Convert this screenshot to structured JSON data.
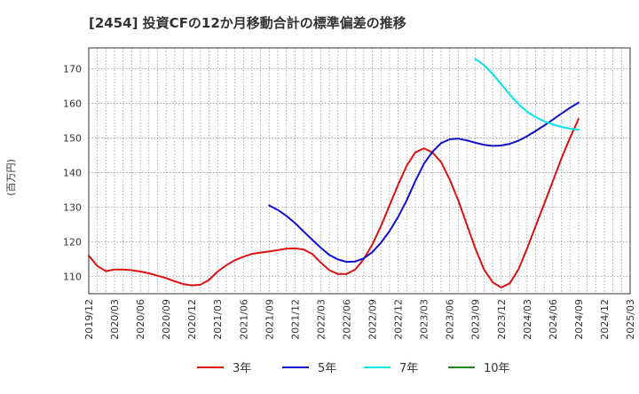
{
  "chart_data": {
    "type": "line",
    "title": "[2454]  投資CFの12か月移動合計の標準偏差の推移",
    "ylabel": "(百万円)",
    "xlabel": "",
    "ylim": [
      105,
      176
    ],
    "yticks": [
      110,
      120,
      130,
      140,
      150,
      160,
      170
    ],
    "x_tick_labels": [
      "2019/12",
      "2020/03",
      "2020/06",
      "2020/09",
      "2020/12",
      "2021/03",
      "2021/06",
      "2021/09",
      "2021/12",
      "2022/03",
      "2022/06",
      "2022/09",
      "2022/12",
      "2023/03",
      "2023/06",
      "2023/09",
      "2023/12",
      "2024/03",
      "2024/06",
      "2024/09",
      "2024/12",
      "2025/03"
    ],
    "grid": true,
    "legend_position": "bottom",
    "series": [
      {
        "name": "3年",
        "color": "#dd1111",
        "x": [
          "2019/12",
          "2020/01",
          "2020/02",
          "2020/03",
          "2020/04",
          "2020/05",
          "2020/06",
          "2020/07",
          "2020/08",
          "2020/09",
          "2020/10",
          "2020/11",
          "2020/12",
          "2021/01",
          "2021/02",
          "2021/03",
          "2021/04",
          "2021/05",
          "2021/06",
          "2021/07",
          "2021/08",
          "2021/09",
          "2021/10",
          "2021/11",
          "2021/12",
          "2022/01",
          "2022/02",
          "2022/03",
          "2022/04",
          "2022/05",
          "2022/06",
          "2022/07",
          "2022/08",
          "2022/09",
          "2022/10",
          "2022/11",
          "2022/12",
          "2023/01",
          "2023/02",
          "2023/03",
          "2023/04",
          "2023/05",
          "2023/06",
          "2023/07",
          "2023/08",
          "2023/09",
          "2023/10",
          "2023/11",
          "2023/12",
          "2024/01",
          "2024/02",
          "2024/03",
          "2024/04",
          "2024/05",
          "2024/06",
          "2024/07",
          "2024/08",
          "2024/09"
        ],
        "values": [
          116,
          113,
          111.5,
          112,
          112,
          111.8,
          111.4,
          110.9,
          110.2,
          109.5,
          108.6,
          107.8,
          107.4,
          107.6,
          109,
          111.4,
          113.2,
          114.7,
          115.7,
          116.5,
          116.9,
          117.2,
          117.6,
          118,
          118.1,
          117.8,
          116.5,
          114,
          111.8,
          110.7,
          110.7,
          112,
          115,
          119.2,
          124.5,
          130.5,
          136.5,
          142,
          145.8,
          147,
          145.8,
          143,
          138,
          132,
          125,
          118,
          112,
          108.3,
          106.8,
          108,
          112,
          118,
          124.5,
          131,
          137.5,
          144,
          150,
          155.5
        ]
      },
      {
        "name": "5年",
        "color": "#1111cc",
        "x": [
          "2021/09",
          "2021/10",
          "2021/11",
          "2021/12",
          "2022/01",
          "2022/02",
          "2022/03",
          "2022/04",
          "2022/05",
          "2022/06",
          "2022/07",
          "2022/08",
          "2022/09",
          "2022/10",
          "2022/11",
          "2022/12",
          "2023/01",
          "2023/02",
          "2023/03",
          "2023/04",
          "2023/05",
          "2023/06",
          "2023/07",
          "2023/08",
          "2023/09",
          "2023/10",
          "2023/11",
          "2023/12",
          "2024/01",
          "2024/02",
          "2024/03",
          "2024/04",
          "2024/05",
          "2024/06",
          "2024/07",
          "2024/08",
          "2024/09"
        ],
        "values": [
          130.5,
          129.2,
          127.5,
          125.4,
          123,
          120.6,
          118.3,
          116.2,
          114.9,
          114.2,
          114.3,
          115.2,
          117,
          119.7,
          123.1,
          127.2,
          132,
          137.5,
          142.5,
          146,
          148.5,
          149.6,
          149.8,
          149.3,
          148.6,
          148,
          147.7,
          147.8,
          148.3,
          149.2,
          150.5,
          152,
          153.6,
          155.3,
          157,
          158.7,
          160.2
        ]
      },
      {
        "name": "7年",
        "color": "#00e5ee",
        "x": [
          "2023/09",
          "2023/10",
          "2023/11",
          "2023/12",
          "2024/01",
          "2024/02",
          "2024/03",
          "2024/04",
          "2024/05",
          "2024/06",
          "2024/07",
          "2024/08",
          "2024/09"
        ],
        "values": [
          172.8,
          171,
          168.5,
          165.5,
          162.5,
          159.8,
          157.6,
          156,
          154.8,
          153.9,
          153.2,
          152.7,
          152.4
        ]
      },
      {
        "name": "10年",
        "color": "#228822",
        "x": [],
        "values": []
      }
    ]
  }
}
